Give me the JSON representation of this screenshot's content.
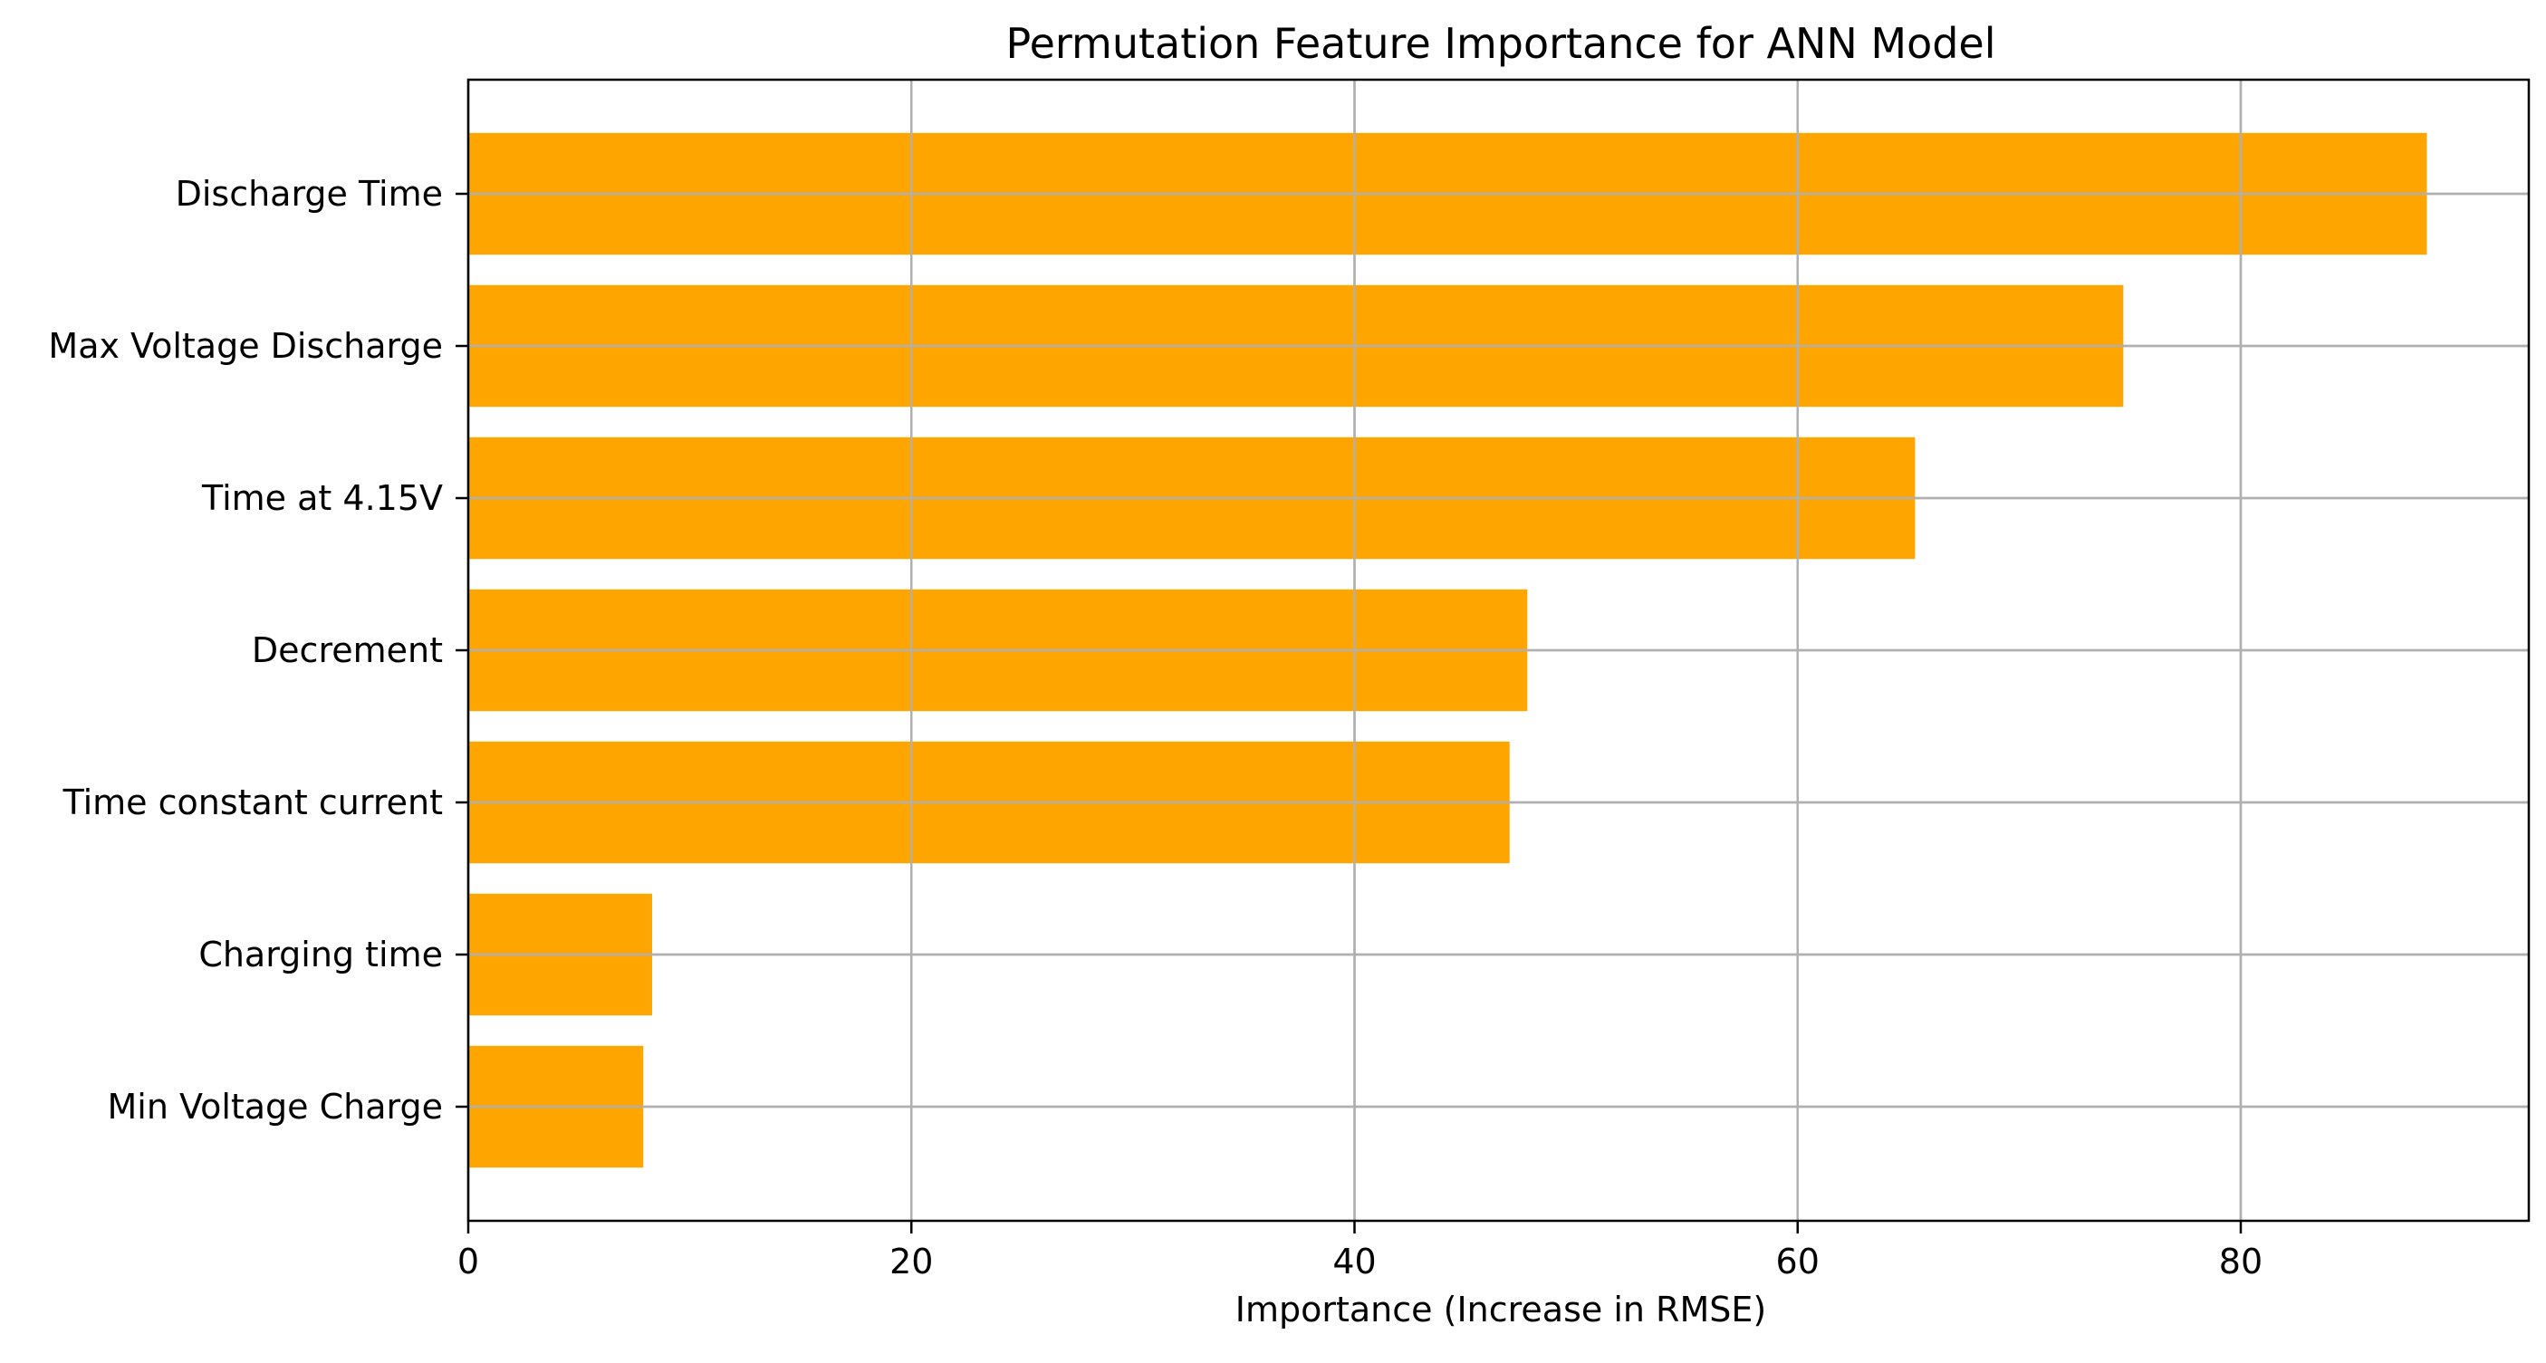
{
  "chart_data": {
    "type": "bar",
    "orientation": "horizontal",
    "title": "Permutation Feature Importance for ANN Model",
    "xlabel": "Importance (Increase in RMSE)",
    "ylabel": "",
    "categories": [
      "Discharge Time",
      "Max Voltage Discharge",
      "Time at 4.15V",
      "Decrement",
      "Time constant current",
      "Charging time",
      "Min Voltage Charge"
    ],
    "values": [
      88.4,
      74.7,
      65.3,
      47.8,
      47.0,
      8.3,
      7.9
    ],
    "xlim": [
      0,
      93
    ],
    "xticks": [
      0,
      20,
      40,
      60,
      80
    ],
    "xtick_labels": [
      "0",
      "20",
      "40",
      "60",
      "80"
    ],
    "grid": true,
    "bar_color": "#FFA500",
    "grid_color": "#B0B0B0",
    "axis_color": "#000000"
  }
}
